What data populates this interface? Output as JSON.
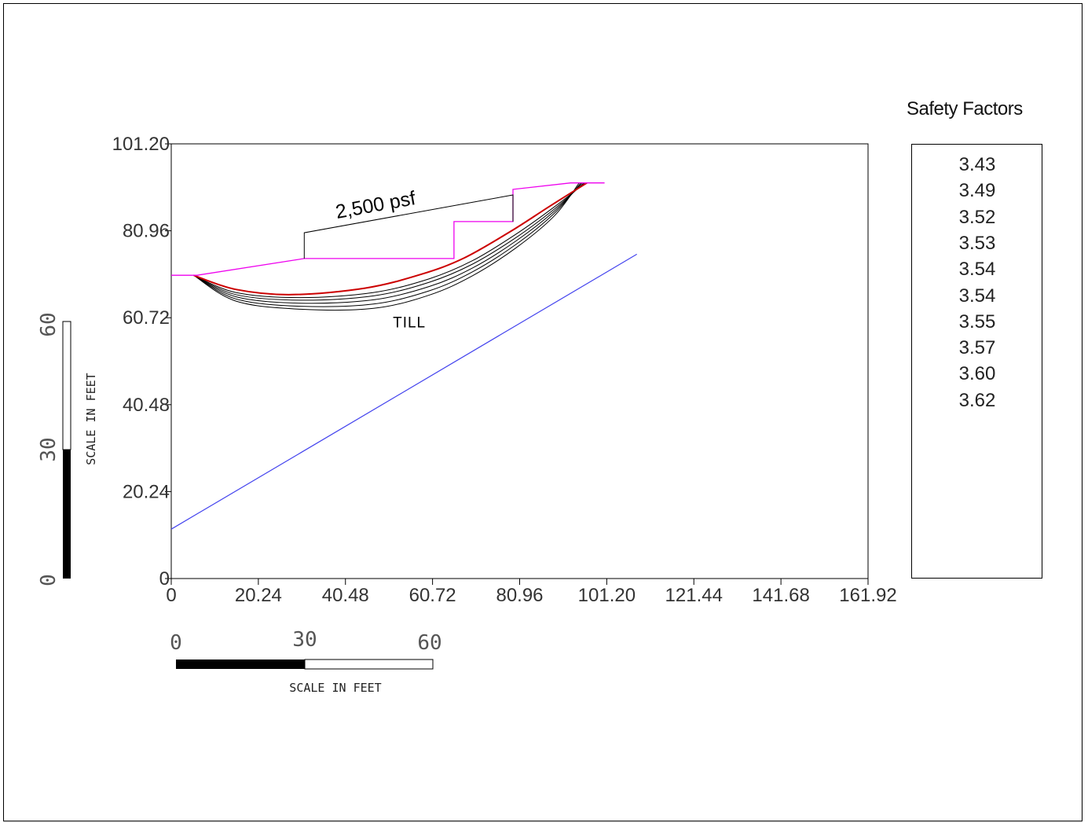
{
  "chart_data": {
    "type": "line",
    "x_ticks": [
      "0",
      "20.24",
      "40.48",
      "60.72",
      "80.96",
      "101.20",
      "121.44",
      "141.68",
      "161.92"
    ],
    "y_ticks": [
      "0",
      "20.24",
      "40.48",
      "60.72",
      "80.96",
      "101.20"
    ],
    "xlim": [
      0,
      161.92
    ],
    "ylim": [
      0,
      101.2
    ],
    "grid": false,
    "annotations": [
      "2,500 psf",
      "TILL"
    ],
    "ground_surface": [
      [
        0,
        70.6
      ],
      [
        6,
        70.6
      ],
      [
        30.9,
        74.5
      ],
      [
        65.7,
        74.5
      ],
      [
        65.7,
        83.1
      ],
      [
        79.4,
        83.1
      ],
      [
        79.4,
        90.6
      ],
      [
        92.8,
        92.1
      ],
      [
        100.7,
        92.1
      ]
    ],
    "surcharge_load": [
      [
        30.9,
        74.5
      ],
      [
        30.9,
        80.5
      ],
      [
        79.4,
        89.3
      ],
      [
        79.4,
        83.1
      ]
    ],
    "water_table": [
      [
        0,
        11.5
      ],
      [
        108.2,
        75.5
      ]
    ],
    "critical_surface": [
      [
        5.2,
        70.6
      ],
      [
        15,
        67.3
      ],
      [
        28,
        66.1
      ],
      [
        45,
        67.6
      ],
      [
        58,
        70.8
      ],
      [
        68,
        74.6
      ],
      [
        79,
        80.9
      ],
      [
        88,
        86.7
      ],
      [
        96.6,
        92.1
      ]
    ],
    "trial_surfaces": [
      [
        [
          5.2,
          70.6
        ],
        [
          15,
          66.6
        ],
        [
          30,
          65.4
        ],
        [
          47,
          66.6
        ],
        [
          60,
          69.8
        ],
        [
          70,
          74.0
        ],
        [
          80,
          80.1
        ],
        [
          89,
          86.5
        ],
        [
          96.2,
          92.1
        ]
      ],
      [
        [
          5.2,
          70.6
        ],
        [
          15,
          66.1
        ],
        [
          30,
          64.8
        ],
        [
          47,
          65.8
        ],
        [
          60,
          69.0
        ],
        [
          70,
          73.2
        ],
        [
          80,
          79.3
        ],
        [
          89,
          86.0
        ],
        [
          95.9,
          92.1
        ]
      ],
      [
        [
          5.2,
          70.6
        ],
        [
          15,
          65.6
        ],
        [
          30,
          64.1
        ],
        [
          47,
          64.9
        ],
        [
          60,
          68.0
        ],
        [
          70,
          72.3
        ],
        [
          80,
          78.5
        ],
        [
          89,
          85.5
        ],
        [
          95.5,
          92.1
        ]
      ],
      [
        [
          5.2,
          70.6
        ],
        [
          15,
          65.1
        ],
        [
          30,
          63.4
        ],
        [
          47,
          63.9
        ],
        [
          60,
          67.0
        ],
        [
          70,
          71.4
        ],
        [
          80,
          77.7
        ],
        [
          89,
          85.0
        ],
        [
          95.2,
          92.1
        ]
      ],
      [
        [
          5.2,
          70.6
        ],
        [
          15,
          64.6
        ],
        [
          30,
          62.7
        ],
        [
          47,
          62.9
        ],
        [
          60,
          66.0
        ],
        [
          70,
          70.5
        ],
        [
          80,
          76.9
        ],
        [
          89,
          84.4
        ],
        [
          94.8,
          92.1
        ]
      ]
    ]
  },
  "scale_bars": {
    "horizontal": {
      "ticks": [
        "0",
        "30",
        "60"
      ],
      "label": "SCALE IN FEET"
    },
    "vertical": {
      "ticks": [
        "0",
        "30",
        "60"
      ],
      "label": "SCALE IN FEET"
    }
  },
  "safety_factors": {
    "title": "Safety Factors",
    "values": [
      "3.43",
      "3.49",
      "3.52",
      "3.53",
      "3.54",
      "3.54",
      "3.55",
      "3.57",
      "3.60",
      "3.62"
    ]
  },
  "colors": {
    "ground": "#ee00ee",
    "water_table": "#4444ee",
    "critical": "#cc0000",
    "trial": "#000000"
  }
}
